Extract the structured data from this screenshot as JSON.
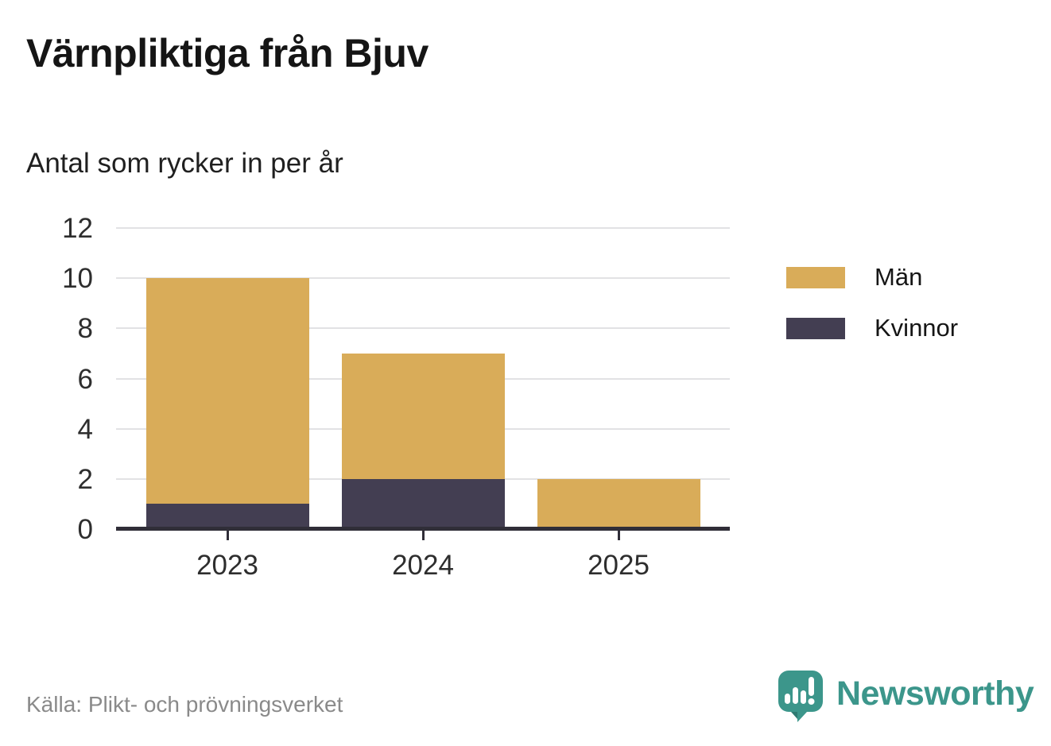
{
  "title": "Värnpliktiga från Bjuv",
  "subtitle": "Antal som rycker in per år",
  "source": "Källa: Plikt- och prövningsverket",
  "branding": {
    "name": "Newsworthy",
    "icon": "newsworthy-speech-bubble-chart-icon",
    "color": "#3c968b"
  },
  "colors": {
    "men": "#d9ac59",
    "women": "#433e52",
    "axis": "#302e38",
    "grid": "#e2e2e4",
    "text": "#2e2e2e",
    "source_text": "#8a8a8a"
  },
  "legend": {
    "items": [
      {
        "label": "Män",
        "color": "#d9ac59"
      },
      {
        "label": "Kvinnor",
        "color": "#433e52"
      }
    ]
  },
  "chart_data": {
    "type": "bar",
    "stacked": true,
    "title": "Värnpliktiga från Bjuv",
    "subtitle": "Antal som rycker in per år",
    "categories": [
      "2023",
      "2024",
      "2025"
    ],
    "series": [
      {
        "name": "Män",
        "color": "#d9ac59",
        "values": [
          9,
          5,
          2
        ]
      },
      {
        "name": "Kvinnor",
        "color": "#433e52",
        "values": [
          1,
          2,
          0
        ]
      }
    ],
    "stack_order_bottom_to_top": [
      "Kvinnor",
      "Män"
    ],
    "totals": [
      10,
      7,
      2
    ],
    "xlabel": "",
    "ylabel": "",
    "ylim": [
      0,
      12
    ],
    "yticks": [
      0,
      2,
      4,
      6,
      8,
      10,
      12
    ],
    "grid": true,
    "legend_position": "right"
  }
}
